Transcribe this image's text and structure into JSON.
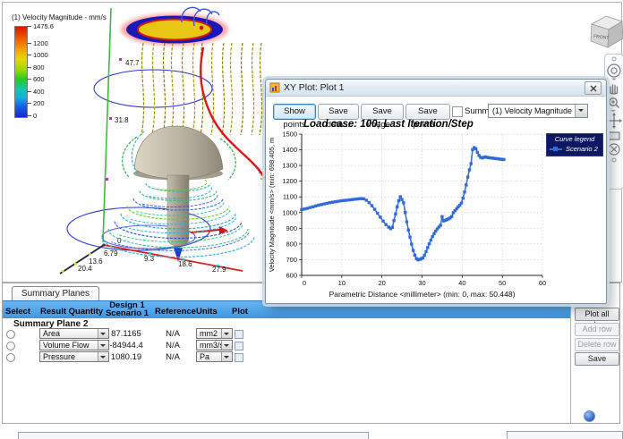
{
  "colorbar": {
    "title": "(1) Velocity Magnitude - mm/s",
    "ticks": [
      1475.6,
      1200,
      1000,
      800,
      600,
      400,
      200,
      0
    ],
    "max_value": 1475.6
  },
  "scene": {
    "vertical_ruler_labels": [
      "47.7",
      "31.8"
    ],
    "red_axis_labels": [
      "0",
      "9.3",
      "18.6",
      "27.9"
    ],
    "blue_axis_labels": [
      "6.79",
      "13.6",
      "20.4"
    ],
    "viewcube_front": "FRONT"
  },
  "plot_window": {
    "title": "XY Plot: Plot 1",
    "buttons": {
      "show_points": "Show points",
      "save_data": "Save data...",
      "save_image": "Save image...",
      "save_points": "Save points..."
    },
    "summary_checkbox_label": "Summary",
    "result_dropdown_value": "(1) Velocity Magnitude"
  },
  "chart_data": {
    "type": "line",
    "title": "Load case: 100; Last Iteration/Step",
    "xlabel": "Parametric Distance <millimeter>  (min: 0, max: 50.448)",
    "ylabel": "Velocity Magnitude <mm/s>  (min: 698.405, m",
    "xlim": [
      0,
      60
    ],
    "ylim": [
      600,
      1500
    ],
    "xticks": [
      0,
      10,
      20,
      30,
      40,
      50,
      60
    ],
    "yticks": [
      600,
      700,
      800,
      900,
      1000,
      1100,
      1200,
      1300,
      1400,
      1500
    ],
    "grid": true,
    "legend_title": "Curve legend",
    "legend_position": "top-right",
    "series": [
      {
        "name": "Scenario 2",
        "color": "#2f6bdb",
        "marker": "square",
        "points": [
          [
            0,
            1019
          ],
          [
            0.7,
            1023
          ],
          [
            1.4,
            1027
          ],
          [
            2.1,
            1032
          ],
          [
            2.8,
            1037
          ],
          [
            3.5,
            1042
          ],
          [
            4.2,
            1047
          ],
          [
            4.9,
            1051
          ],
          [
            5.6,
            1055
          ],
          [
            6.3,
            1059
          ],
          [
            7,
            1063
          ],
          [
            7.7,
            1066
          ],
          [
            8.4,
            1069
          ],
          [
            9.1,
            1072
          ],
          [
            9.8,
            1075
          ],
          [
            10.5,
            1077
          ],
          [
            11.2,
            1079
          ],
          [
            11.9,
            1081
          ],
          [
            12.6,
            1083
          ],
          [
            13.3,
            1085
          ],
          [
            14,
            1087
          ],
          [
            14.7,
            1089
          ],
          [
            15.4,
            1088
          ],
          [
            16.1,
            1079
          ],
          [
            16.8,
            1064
          ],
          [
            17.5,
            1044
          ],
          [
            18.2,
            1021
          ],
          [
            18.9,
            996
          ],
          [
            19.6,
            971
          ],
          [
            20.3,
            946
          ],
          [
            21,
            924
          ],
          [
            21.7,
            907
          ],
          [
            22.2,
            898
          ],
          [
            22.6,
            906
          ],
          [
            23,
            949
          ],
          [
            23.4,
            991
          ],
          [
            23.8,
            1036
          ],
          [
            24.2,
            1076
          ],
          [
            24.6,
            1101
          ],
          [
            25,
            1083
          ],
          [
            25.4,
            1062
          ],
          [
            25.8,
            1001
          ],
          [
            26.2,
            941
          ],
          [
            26.6,
            889
          ],
          [
            27,
            844
          ],
          [
            27.4,
            799
          ],
          [
            27.8,
            759
          ],
          [
            28.2,
            729
          ],
          [
            28.6,
            707
          ],
          [
            29,
            699
          ],
          [
            29.4,
            702
          ],
          [
            29.8,
            706
          ],
          [
            30.2,
            712
          ],
          [
            30.6,
            728
          ],
          [
            31,
            751
          ],
          [
            31.4,
            777
          ],
          [
            31.8,
            801
          ],
          [
            32.2,
            825
          ],
          [
            32.6,
            847
          ],
          [
            33,
            866
          ],
          [
            33.4,
            882
          ],
          [
            33.8,
            896
          ],
          [
            34.2,
            908
          ],
          [
            34.6,
            919
          ],
          [
            35,
            974
          ],
          [
            35.4,
            947
          ],
          [
            35.8,
            951
          ],
          [
            36.2,
            955
          ],
          [
            36.6,
            960
          ],
          [
            37,
            966
          ],
          [
            37.4,
            975
          ],
          [
            37.8,
            999
          ],
          [
            38.2,
            1012
          ],
          [
            38.6,
            1024
          ],
          [
            39,
            1036
          ],
          [
            39.4,
            1047
          ],
          [
            39.8,
            1061
          ],
          [
            40.2,
            1092
          ],
          [
            40.6,
            1131
          ],
          [
            41,
            1176
          ],
          [
            41.4,
            1226
          ],
          [
            41.8,
            1272
          ],
          [
            42.2,
            1312
          ],
          [
            42.6,
            1401
          ],
          [
            43,
            1414
          ],
          [
            43.4,
            1407
          ],
          [
            43.8,
            1384
          ],
          [
            44.2,
            1364
          ],
          [
            44.6,
            1352
          ],
          [
            45,
            1348
          ],
          [
            45.4,
            1352
          ],
          [
            45.8,
            1355
          ],
          [
            46.2,
            1352
          ],
          [
            46.6,
            1350
          ],
          [
            47.1,
            1348
          ],
          [
            47.6,
            1347
          ],
          [
            48.1,
            1345
          ],
          [
            48.6,
            1344
          ],
          [
            49.1,
            1342
          ],
          [
            49.6,
            1340
          ],
          [
            50.1,
            1339
          ],
          [
            50.4,
            1338
          ]
        ]
      }
    ]
  },
  "summary_panel": {
    "tab_label": "Summary Planes",
    "columns": {
      "select": "Select",
      "result_quantity": "Result Quantity",
      "design_line1": "Design 1",
      "design_line2": "Scenario 1",
      "reference": "Reference",
      "units": "Units",
      "plot": "Plot"
    },
    "group_label": "Summary Plane 2",
    "rows": [
      {
        "quantity": "Area",
        "value": "87.1165",
        "reference": "N/A",
        "units": "mm2"
      },
      {
        "quantity": "Volume Flow",
        "value": "-84944.4",
        "reference": "N/A",
        "units": "mm3/s"
      },
      {
        "quantity": "Pressure",
        "value": "1080.19",
        "reference": "N/A",
        "units": "Pa"
      }
    ],
    "buttons": {
      "plot_all": "Plot all values",
      "add_row": "Add row",
      "delete_row": "Delete row",
      "save": "Save"
    }
  }
}
